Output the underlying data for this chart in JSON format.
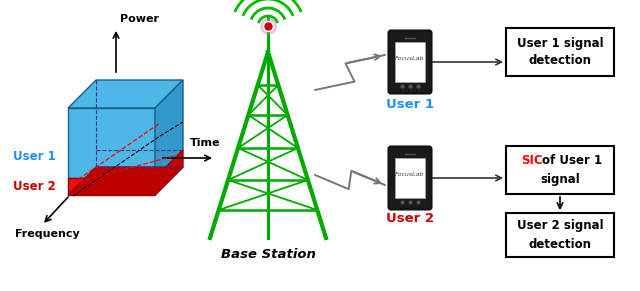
{
  "bg_color": "#ffffff",
  "tower_color": "#00aa00",
  "wave_color": "#00bb00",
  "wave_center_color": "#cc0000",
  "user1_color": "#1e90ff",
  "user2_color": "#cc0000",
  "cube_blue": "#4db8e8",
  "cube_blue_dark": "#2288bb",
  "cube_blue_side": "#3399cc",
  "cube_red": "#ee1111",
  "cube_red_dark": "#cc0000",
  "base_station_label": "Base Station",
  "user1_label": "User 1",
  "user2_label": "User 2",
  "box1_line1": "User 1 signal",
  "box1_line2": "detection",
  "box2_line1": "SIC of User 1",
  "box2_line2": "signal",
  "box3_line1": "User 2 signal",
  "box3_line2": "detection",
  "power_label": "Power",
  "time_label": "Time",
  "freq_label": "Frequency",
  "user1_cube_label": "User 1",
  "user2_cube_label": "User 2"
}
